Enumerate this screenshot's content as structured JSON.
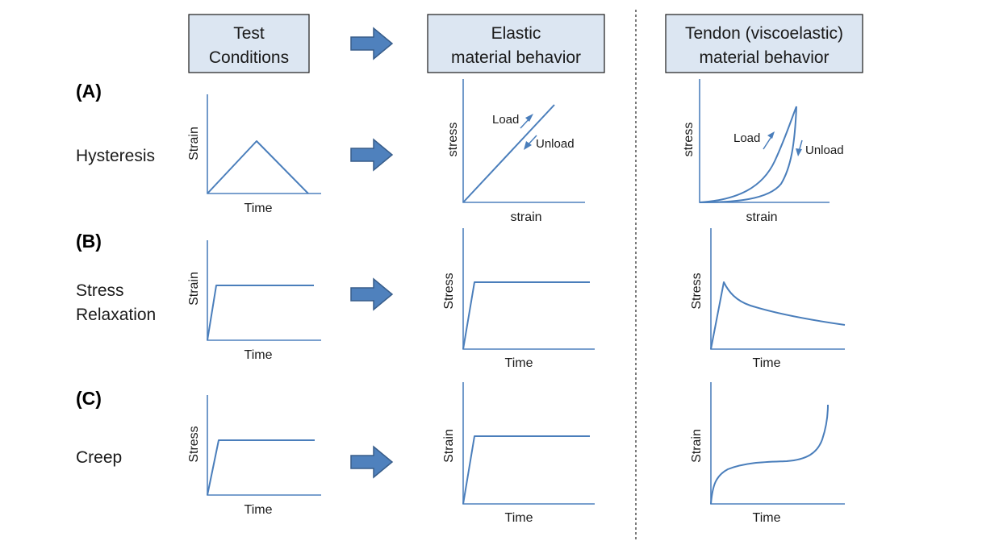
{
  "headers": {
    "test_conditions": [
      "Test",
      "Conditions"
    ],
    "elastic": [
      "Elastic",
      "material behavior"
    ],
    "tendon": [
      "Tendon (viscoelastic)",
      "material behavior"
    ]
  },
  "rows": [
    {
      "id": "(A)",
      "name": [
        "Hysteresis"
      ],
      "test": {
        "ylabel": "Strain",
        "xlabel": "Time"
      },
      "elastic": {
        "ylabel": "stress",
        "xlabel": "strain",
        "load_label": "Load",
        "unload_label": "Unload"
      },
      "tendon": {
        "ylabel": "stress",
        "xlabel": "strain",
        "load_label": "Load",
        "unload_label": "Unload"
      }
    },
    {
      "id": "(B)",
      "name": [
        "Stress",
        "Relaxation"
      ],
      "test": {
        "ylabel": "Strain",
        "xlabel": "Time"
      },
      "elastic": {
        "ylabel": "Stress",
        "xlabel": "Time"
      },
      "tendon": {
        "ylabel": "Stress",
        "xlabel": "Time"
      }
    },
    {
      "id": "(C)",
      "name": [
        "Creep"
      ],
      "test": {
        "ylabel": "Stress",
        "xlabel": "Time"
      },
      "elastic": {
        "ylabel": "Strain",
        "xlabel": "Time"
      },
      "tendon": {
        "ylabel": "Strain",
        "xlabel": "Time"
      }
    }
  ],
  "colors": {
    "header_fill": "#dce6f2",
    "curve": "#4a7ebb",
    "arrow_fill": "#4f81bd"
  }
}
